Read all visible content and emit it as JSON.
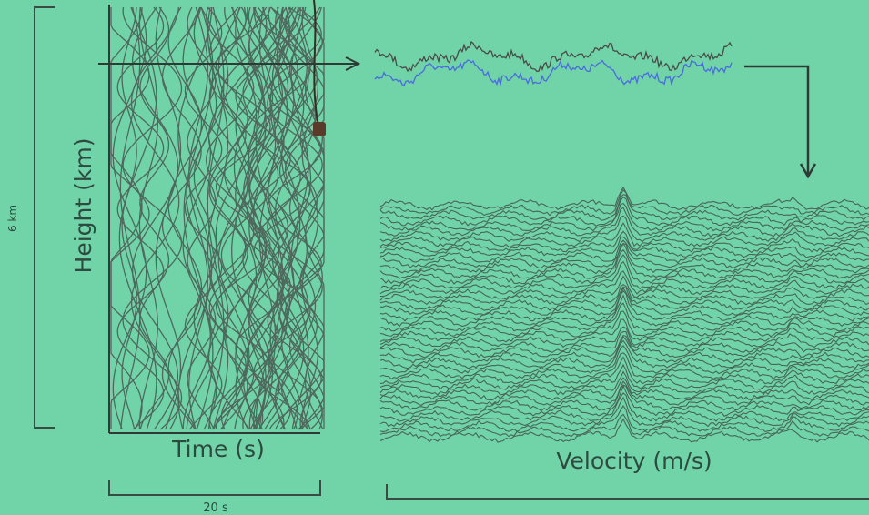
{
  "left_panel": {
    "scale_label": "6 km",
    "y_axis_label": "Height (km)",
    "x_axis_label": "Time (s)",
    "x_scale_label": "20 s"
  },
  "right_panel": {
    "x_axis_label": "Velocity (m/s)"
  }
}
